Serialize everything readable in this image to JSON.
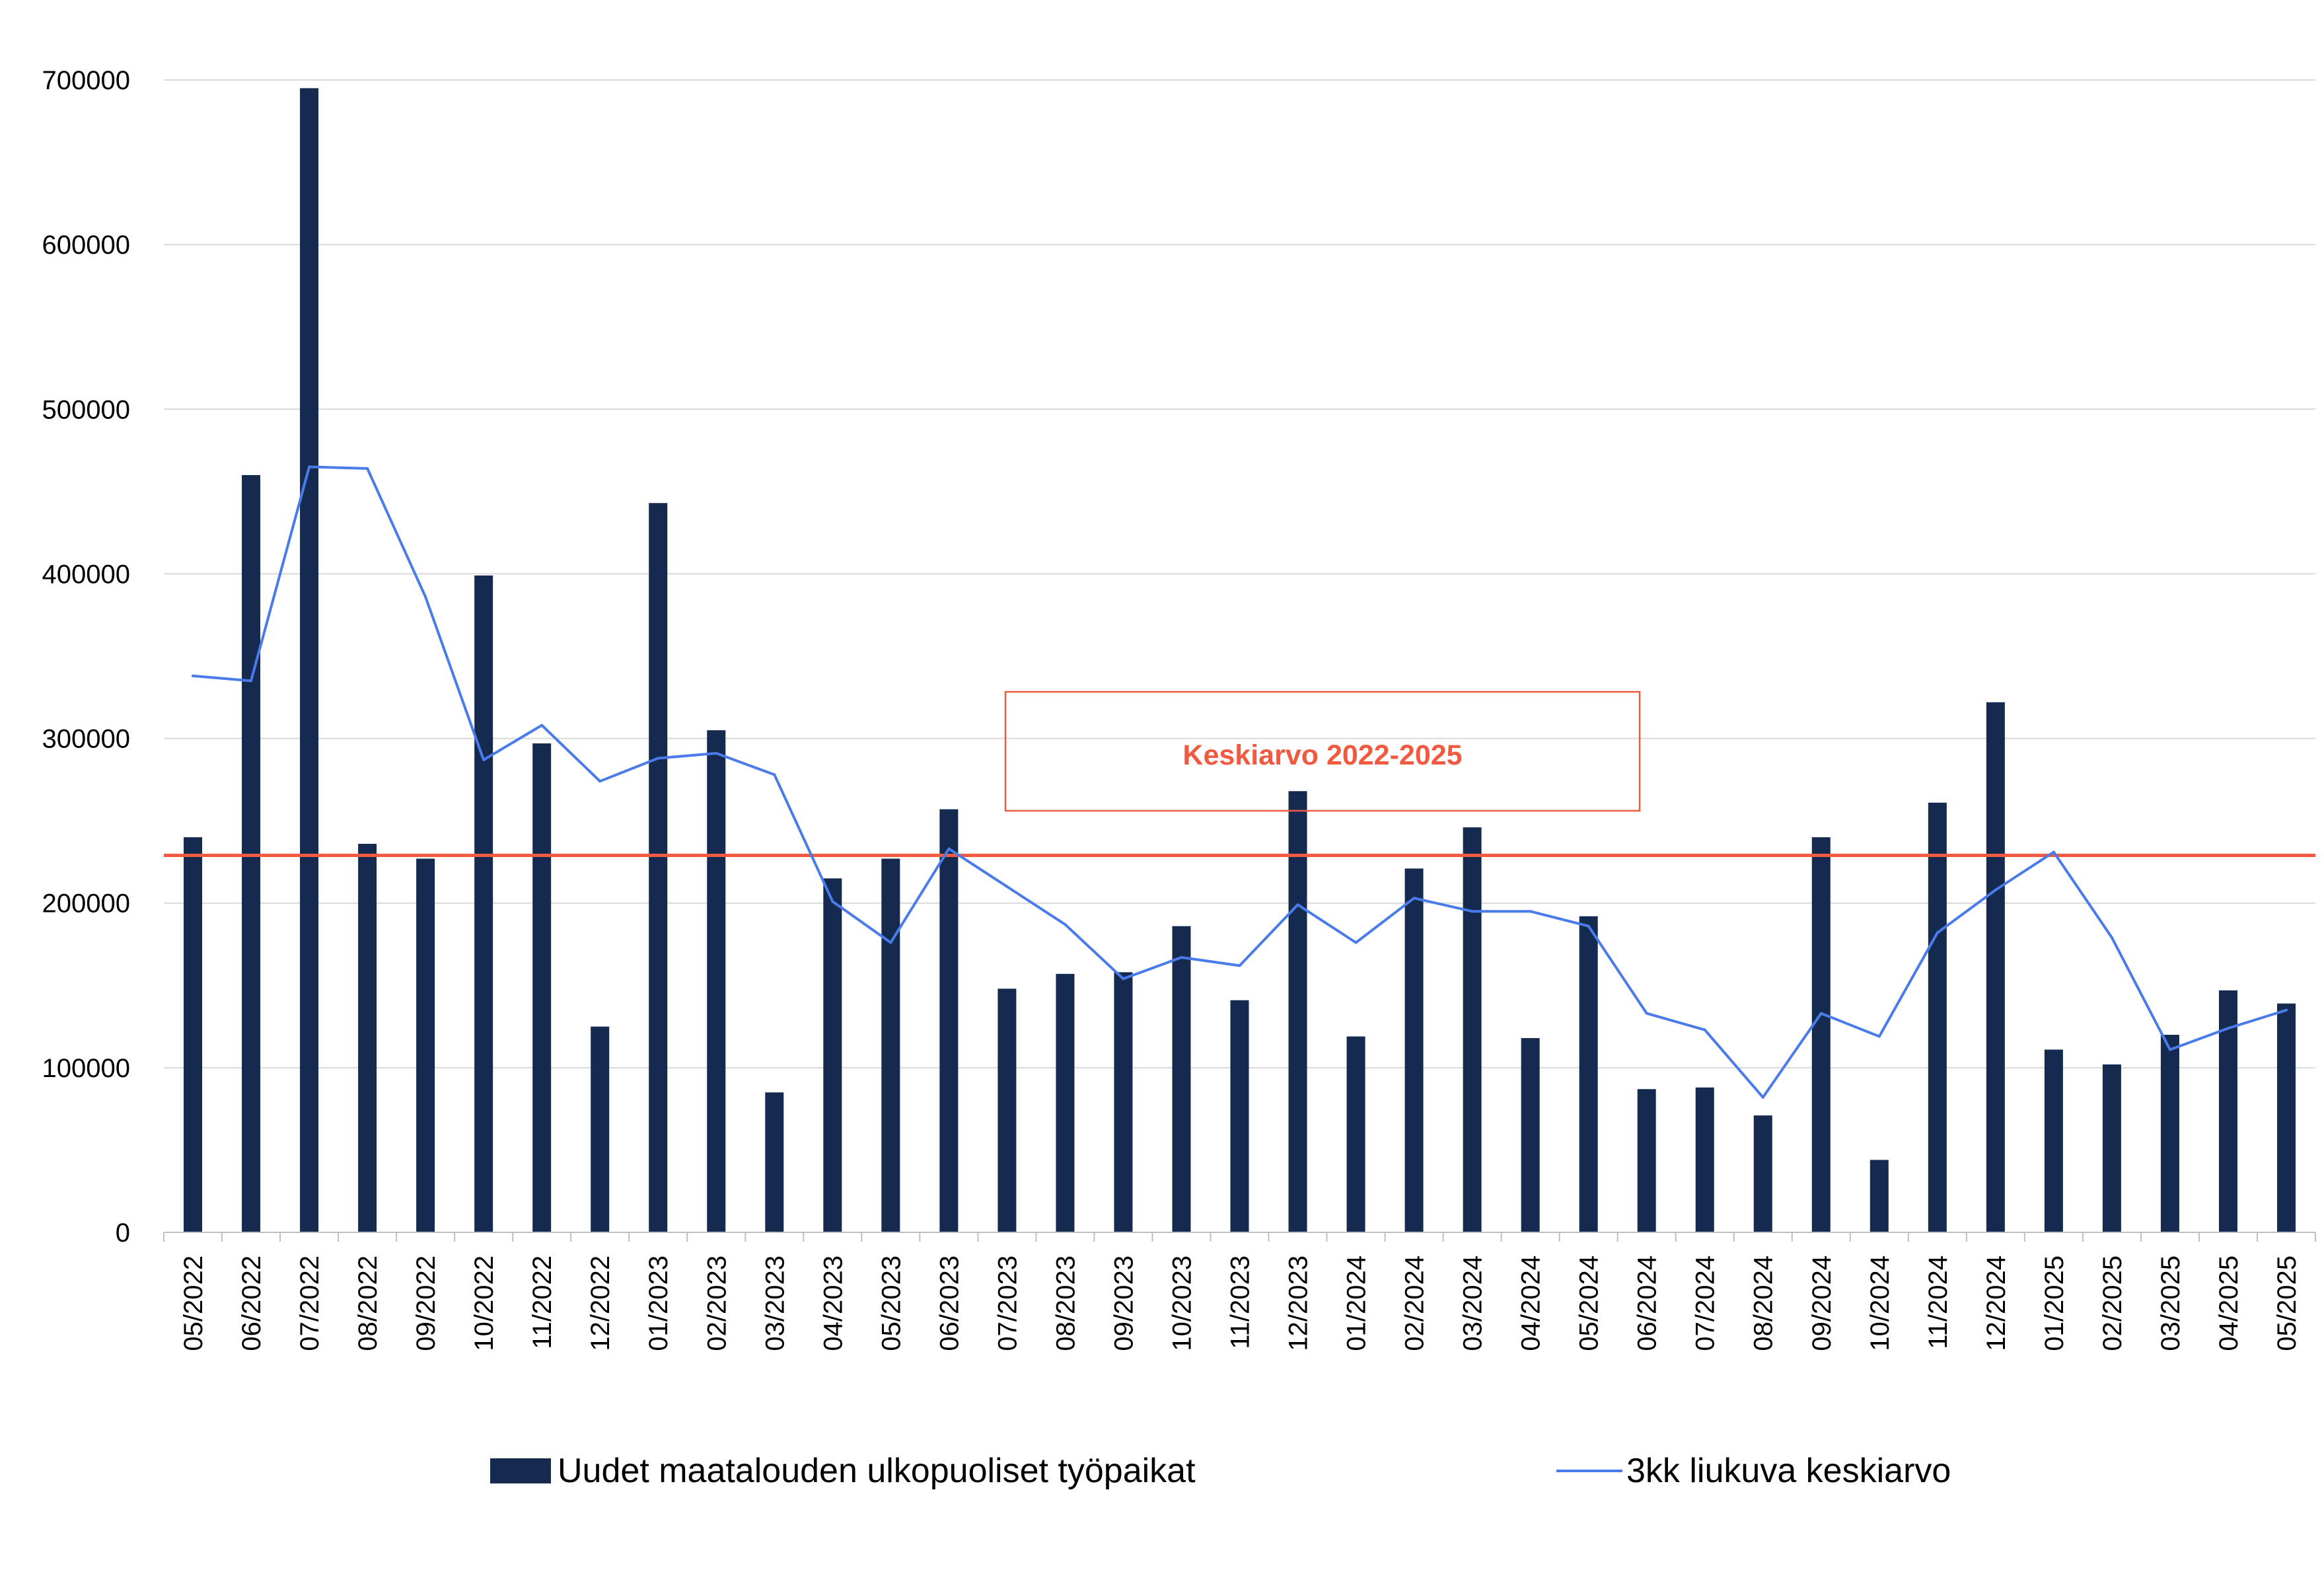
{
  "chart_data": {
    "type": "bar",
    "categories": [
      "05/2022",
      "06/2022",
      "07/2022",
      "08/2022",
      "09/2022",
      "10/2022",
      "11/2022",
      "12/2022",
      "01/2023",
      "02/2023",
      "03/2023",
      "04/2023",
      "05/2023",
      "06/2023",
      "07/2023",
      "08/2023",
      "09/2023",
      "10/2023",
      "11/2023",
      "12/2023",
      "01/2024",
      "02/2024",
      "03/2024",
      "04/2024",
      "05/2024",
      "06/2024",
      "07/2024",
      "08/2024",
      "09/2024",
      "10/2024",
      "11/2024",
      "12/2024",
      "01/2025",
      "02/2025",
      "03/2025",
      "04/2025",
      "05/2025"
    ],
    "series": [
      {
        "name": "Uudet maatalouden ulkopuoliset työpaikat",
        "type": "bar",
        "color": "#152a4f",
        "values": [
          240000,
          460000,
          695000,
          236000,
          227000,
          399000,
          297000,
          125000,
          443000,
          305000,
          85000,
          215000,
          227000,
          257000,
          148000,
          157000,
          158000,
          186000,
          141000,
          268000,
          119000,
          221000,
          246000,
          118000,
          192000,
          87000,
          88000,
          71000,
          240000,
          44000,
          261000,
          322000,
          111000,
          102000,
          120000,
          147000,
          139000
        ]
      },
      {
        "name": "3kk liukuva keskiarvo",
        "type": "line",
        "color": "#4a7bea",
        "values": [
          338000,
          335000,
          465000,
          464000,
          386000,
          287000,
          308000,
          274000,
          288000,
          291000,
          278000,
          201000,
          176000,
          233000,
          210000,
          187000,
          154000,
          167000,
          162000,
          199000,
          176000,
          203000,
          195000,
          195000,
          186000,
          133000,
          123000,
          82000,
          133000,
          119000,
          182000,
          208000,
          231000,
          179000,
          111000,
          124000,
          135000
        ]
      }
    ],
    "reference_line": {
      "value": 229000,
      "color": "#f05a40",
      "label": "Keskiarvo 2022-2025"
    },
    "yticks": [
      "0",
      "100000",
      "200000",
      "300000",
      "400000",
      "500000",
      "600000",
      "700000"
    ],
    "ylim": [
      0,
      700000
    ],
    "title": "",
    "xlabel": "",
    "ylabel": "",
    "grid": true,
    "legend_position": "bottom"
  }
}
